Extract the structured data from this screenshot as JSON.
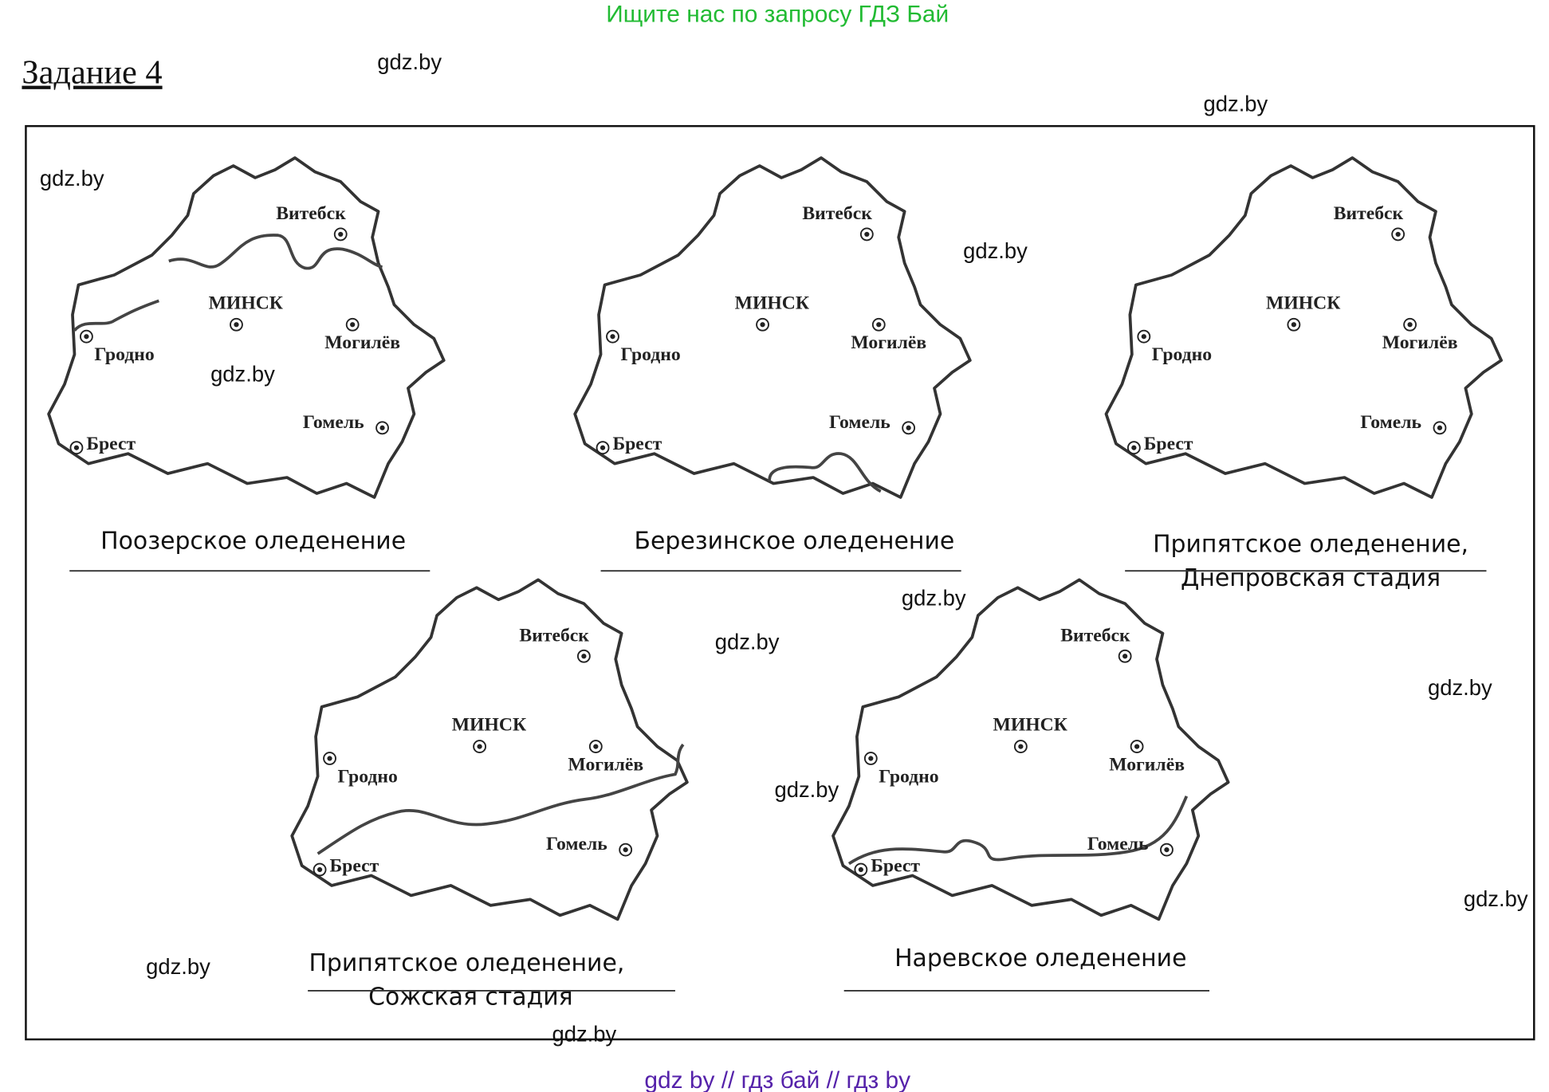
{
  "banner": "Ищите нас по запросу ГДЗ Бай",
  "title": "Задание 4",
  "watermark": "gdz.by",
  "maps": [
    {
      "cities": [
        "Витебск",
        "МИНСК",
        "Гродно",
        "Могилёв",
        "Гомель",
        "Брест"
      ],
      "caption": [
        "Поозерское оледенение"
      ]
    },
    {
      "cities": [
        "Витебск",
        "МИНСК",
        "Гродно",
        "Могилёв",
        "Гомель",
        "Брест"
      ],
      "caption": [
        "Березинское оледенение"
      ]
    },
    {
      "cities": [
        "Витебск",
        "МИНСК",
        "Гродно",
        "Могилёв",
        "Гомель",
        "Брест"
      ],
      "caption": [
        "Припятское оледенение,",
        "Днепровская стадия"
      ]
    },
    {
      "cities": [
        "Витебск",
        "МИНСК",
        "Гродно",
        "Могилёв",
        "Гомель",
        "Брест"
      ],
      "caption": [
        "Припятское оледенение,",
        "Сожская стадия"
      ]
    },
    {
      "cities": [
        "Витебск",
        "МИНСК",
        "Гродно",
        "Могилёв",
        "Гомель",
        "Брест"
      ],
      "caption": [
        "Наревское оледенение"
      ]
    }
  ],
  "footer": "gdz by  //  гдз бай  //  гдз by"
}
